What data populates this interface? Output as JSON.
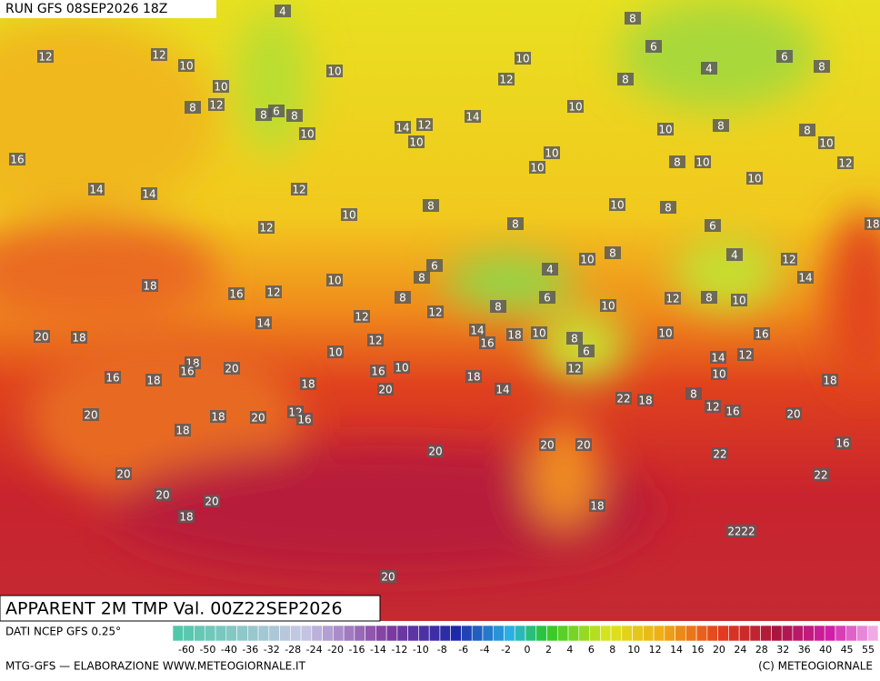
{
  "header": {
    "run": "RUN GFS 08SEP2026 18Z"
  },
  "title": "APPARENT 2M TMP Val. 00Z22SEP2026",
  "footer": {
    "source": "DATI NCEP GFS 0.25°",
    "credit": "MTG-GFS — ELABORAZIONE WWW.METEOGIORNALE.IT",
    "copyright": "(C) METEOGIORNALE"
  },
  "scale": {
    "ticks": [
      -60,
      -50,
      -40,
      -36,
      -32,
      -28,
      -24,
      -20,
      -16,
      -14,
      -12,
      -10,
      -8,
      -6,
      -4,
      -2,
      0,
      2,
      4,
      6,
      8,
      10,
      12,
      14,
      16,
      20,
      24,
      28,
      32,
      36,
      40,
      45,
      55
    ]
  },
  "map": {
    "labels": [
      12,
      12,
      10,
      10,
      8,
      12,
      8,
      6,
      8,
      10,
      10,
      4,
      16,
      14,
      14,
      12,
      12,
      10,
      14,
      12,
      10,
      14,
      12,
      10,
      10,
      10,
      10,
      8,
      6,
      8,
      4,
      6,
      8,
      10,
      8,
      8,
      10,
      8,
      10,
      10,
      12,
      8,
      8,
      10,
      8,
      6,
      18,
      4,
      12,
      14,
      8,
      10,
      4,
      6,
      6,
      8,
      8,
      10,
      16,
      12,
      18,
      14,
      12,
      12,
      8,
      12,
      10,
      8,
      10,
      16,
      14,
      12,
      10,
      10,
      8,
      6,
      10,
      18,
      16,
      14,
      12,
      10,
      20,
      18,
      18,
      16,
      16,
      18,
      20,
      18,
      16,
      10,
      20,
      18,
      14,
      12,
      22,
      18,
      8,
      12,
      16,
      20,
      18,
      20,
      18,
      20,
      12,
      16,
      18,
      20,
      20,
      20,
      16,
      22,
      22,
      20,
      20,
      20,
      18,
      18,
      22,
      22,
      20
    ]
  }
}
